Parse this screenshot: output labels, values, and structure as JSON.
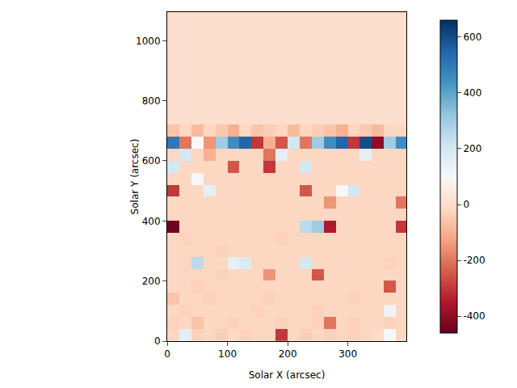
{
  "chart_data": {
    "type": "heatmap",
    "xlabel": "Solar X (arcsec)",
    "ylabel": "Solar Y (arcsec)",
    "x": [
      10,
      30,
      50,
      70,
      90,
      110,
      130,
      150,
      170,
      190,
      210,
      230,
      250,
      270,
      290,
      310,
      330,
      350,
      370,
      390
    ],
    "y": [
      20,
      60,
      100,
      140,
      180,
      220,
      260,
      300,
      340,
      380,
      420,
      460,
      500,
      540,
      580,
      620,
      660,
      700,
      740,
      780,
      820,
      860,
      900,
      940,
      980,
      1020,
      1060,
      1100
    ],
    "cells": [
      [
        -20,
        150,
        -30,
        -20,
        -40,
        -10,
        -30,
        -20,
        -20,
        -300,
        -20,
        -40,
        -20,
        -30,
        -20,
        -30,
        -20,
        -10,
        100,
        -20
      ],
      [
        -30,
        -20,
        -60,
        -20,
        -20,
        -30,
        -20,
        -20,
        -20,
        -30,
        -20,
        -20,
        -30,
        -200,
        -20,
        -30,
        -20,
        -20,
        -30,
        -20
      ],
      [
        -20,
        -30,
        -20,
        -20,
        -20,
        -20,
        -20,
        -30,
        -20,
        -20,
        -20,
        -20,
        -30,
        -20,
        -20,
        -20,
        -20,
        -20,
        120,
        -20
      ],
      [
        -60,
        -20,
        -20,
        -30,
        -20,
        -20,
        -20,
        -20,
        -30,
        -20,
        -20,
        -20,
        -20,
        -20,
        -20,
        -30,
        -20,
        -20,
        -20,
        -20
      ],
      [
        -20,
        -20,
        -30,
        -20,
        -20,
        -20,
        -20,
        -20,
        -20,
        -20,
        -20,
        -20,
        -20,
        -20,
        -20,
        -20,
        -20,
        -20,
        -250,
        -20
      ],
      [
        -20,
        -20,
        -20,
        -20,
        -30,
        -20,
        -20,
        -20,
        -150,
        -20,
        -20,
        -20,
        -250,
        -20,
        -20,
        -20,
        -20,
        -20,
        -20,
        -20
      ],
      [
        -20,
        -20,
        250,
        -20,
        -20,
        150,
        180,
        -20,
        -20,
        -20,
        -20,
        200,
        -20,
        -20,
        -20,
        -20,
        -20,
        -20,
        -30,
        -20
      ],
      [
        -20,
        -20,
        -20,
        -20,
        -30,
        -20,
        -20,
        -20,
        -20,
        -20,
        -20,
        -20,
        -20,
        -20,
        -20,
        -20,
        -20,
        -20,
        -20,
        -20
      ],
      [
        -20,
        -30,
        -20,
        -20,
        -20,
        -20,
        -20,
        -20,
        -20,
        -30,
        -20,
        -20,
        -20,
        -20,
        -20,
        -20,
        -20,
        -20,
        -20,
        -20
      ],
      [
        -450,
        -20,
        -20,
        -20,
        -20,
        -20,
        -20,
        -20,
        -20,
        -20,
        -20,
        250,
        300,
        -350,
        -20,
        -20,
        -20,
        -20,
        -20,
        -300
      ],
      [
        -20,
        -20,
        -20,
        -20,
        -20,
        -20,
        -20,
        -20,
        -20,
        -20,
        -20,
        -20,
        -20,
        -20,
        -20,
        -20,
        -20,
        -20,
        -20,
        -20
      ],
      [
        -20,
        -20,
        -20,
        -20,
        -20,
        -20,
        -20,
        -20,
        -20,
        -20,
        -20,
        -20,
        -20,
        -150,
        -20,
        -20,
        -20,
        -20,
        -20,
        -200
      ],
      [
        -300,
        -20,
        -20,
        150,
        -20,
        -20,
        -20,
        -20,
        -20,
        -20,
        -20,
        -250,
        -20,
        -20,
        100,
        200,
        -20,
        -20,
        -20,
        -20
      ],
      [
        -20,
        -20,
        100,
        -20,
        -20,
        -20,
        -20,
        -20,
        -20,
        -20,
        -20,
        -20,
        -20,
        -20,
        -20,
        -20,
        -20,
        -20,
        -20,
        -20
      ],
      [
        200,
        -20,
        -20,
        -20,
        -20,
        -250,
        -20,
        -20,
        -300,
        -20,
        -20,
        200,
        -20,
        -20,
        -20,
        -20,
        -20,
        -20,
        -20,
        -20
      ],
      [
        -20,
        200,
        -20,
        -100,
        -20,
        -20,
        -20,
        -20,
        -200,
        150,
        -20,
        -20,
        -20,
        -20,
        -20,
        -20,
        150,
        -20,
        -20,
        -20
      ],
      [
        500,
        -200,
        100,
        -150,
        300,
        450,
        550,
        -300,
        -100,
        -250,
        200,
        -200,
        300,
        450,
        550,
        -300,
        600,
        -400,
        300,
        450
      ],
      [
        -60,
        -20,
        -80,
        -20,
        -50,
        -100,
        -20,
        -60,
        -40,
        -20,
        -80,
        -20,
        -40,
        -60,
        -100,
        -20,
        -50,
        -80,
        -20,
        -20
      ],
      [
        0,
        0,
        0,
        0,
        0,
        0,
        0,
        0,
        0,
        0,
        0,
        0,
        0,
        0,
        0,
        0,
        0,
        0,
        0,
        0
      ],
      [
        0,
        0,
        0,
        0,
        0,
        0,
        0,
        0,
        0,
        0,
        0,
        0,
        0,
        0,
        0,
        0,
        0,
        0,
        0,
        0
      ],
      [
        0,
        0,
        0,
        0,
        0,
        0,
        0,
        0,
        0,
        0,
        0,
        0,
        0,
        0,
        0,
        0,
        0,
        0,
        0,
        0
      ],
      [
        0,
        0,
        0,
        0,
        0,
        0,
        0,
        0,
        0,
        0,
        0,
        0,
        0,
        0,
        0,
        0,
        0,
        0,
        0,
        0
      ],
      [
        0,
        0,
        0,
        0,
        0,
        0,
        0,
        0,
        0,
        0,
        0,
        0,
        0,
        0,
        0,
        0,
        0,
        0,
        0,
        0
      ],
      [
        0,
        0,
        0,
        0,
        0,
        0,
        0,
        0,
        0,
        0,
        0,
        0,
        0,
        0,
        0,
        0,
        0,
        0,
        0,
        0
      ],
      [
        0,
        0,
        0,
        0,
        0,
        0,
        0,
        0,
        0,
        0,
        0,
        0,
        0,
        0,
        0,
        0,
        0,
        0,
        0,
        0
      ],
      [
        0,
        0,
        0,
        0,
        0,
        0,
        0,
        0,
        0,
        0,
        0,
        0,
        0,
        0,
        0,
        0,
        0,
        0,
        0,
        0
      ],
      [
        0,
        0,
        0,
        0,
        0,
        0,
        0,
        0,
        0,
        0,
        0,
        0,
        0,
        0,
        0,
        0,
        0,
        0,
        0,
        0
      ],
      [
        0,
        0,
        0,
        0,
        0,
        0,
        0,
        0,
        0,
        0,
        0,
        0,
        0,
        0,
        0,
        0,
        0,
        0,
        0,
        0
      ]
    ],
    "xlim": [
      0,
      397
    ],
    "xticks": [
      0,
      100,
      200,
      300
    ],
    "ylim": [
      0,
      1095
    ],
    "yticks": [
      0,
      200,
      400,
      600,
      800,
      1000
    ],
    "color_range": [
      -460,
      660
    ],
    "color_ticks": [
      -400,
      -200,
      0,
      200,
      400,
      600
    ]
  }
}
